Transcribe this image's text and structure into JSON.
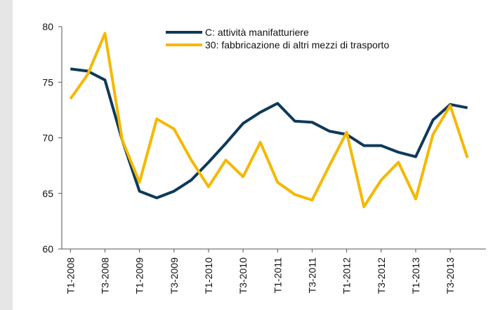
{
  "chart_data": {
    "type": "line",
    "categories": [
      "T1-2008",
      null,
      "T3-2008",
      null,
      "T1-2009",
      null,
      "T3-2009",
      null,
      "T1-2010",
      null,
      "T3-2010",
      null,
      "T1-2011",
      null,
      "T3-2011",
      null,
      "T1-2012",
      null,
      "T3-2012",
      null,
      "T1-2013",
      null,
      "T3-2013",
      null
    ],
    "series": [
      {
        "name": "C: attività manifatturiere",
        "color": "#0e3a5a",
        "values": [
          76.2,
          76.0,
          75.2,
          69.8,
          65.2,
          64.6,
          65.2,
          66.2,
          67.8,
          69.5,
          71.3,
          72.3,
          73.1,
          71.5,
          71.4,
          70.6,
          70.3,
          69.3,
          69.3,
          68.7,
          68.3,
          71.6,
          73.0,
          72.7
        ]
      },
      {
        "name": "30: fabbricazione di altri mezzi di trasporto",
        "color": "#f5b800",
        "values": [
          73.5,
          75.7,
          79.4,
          69.8,
          66.0,
          71.7,
          70.8,
          68.0,
          65.6,
          68.0,
          66.5,
          69.6,
          66.0,
          64.9,
          64.4,
          67.5,
          70.5,
          63.8,
          66.2,
          67.8,
          64.5,
          70.3,
          72.9,
          68.2
        ]
      }
    ],
    "ylim": [
      60,
      80
    ],
    "yticks": [
      60,
      65,
      70,
      75,
      80
    ],
    "grid": false
  }
}
